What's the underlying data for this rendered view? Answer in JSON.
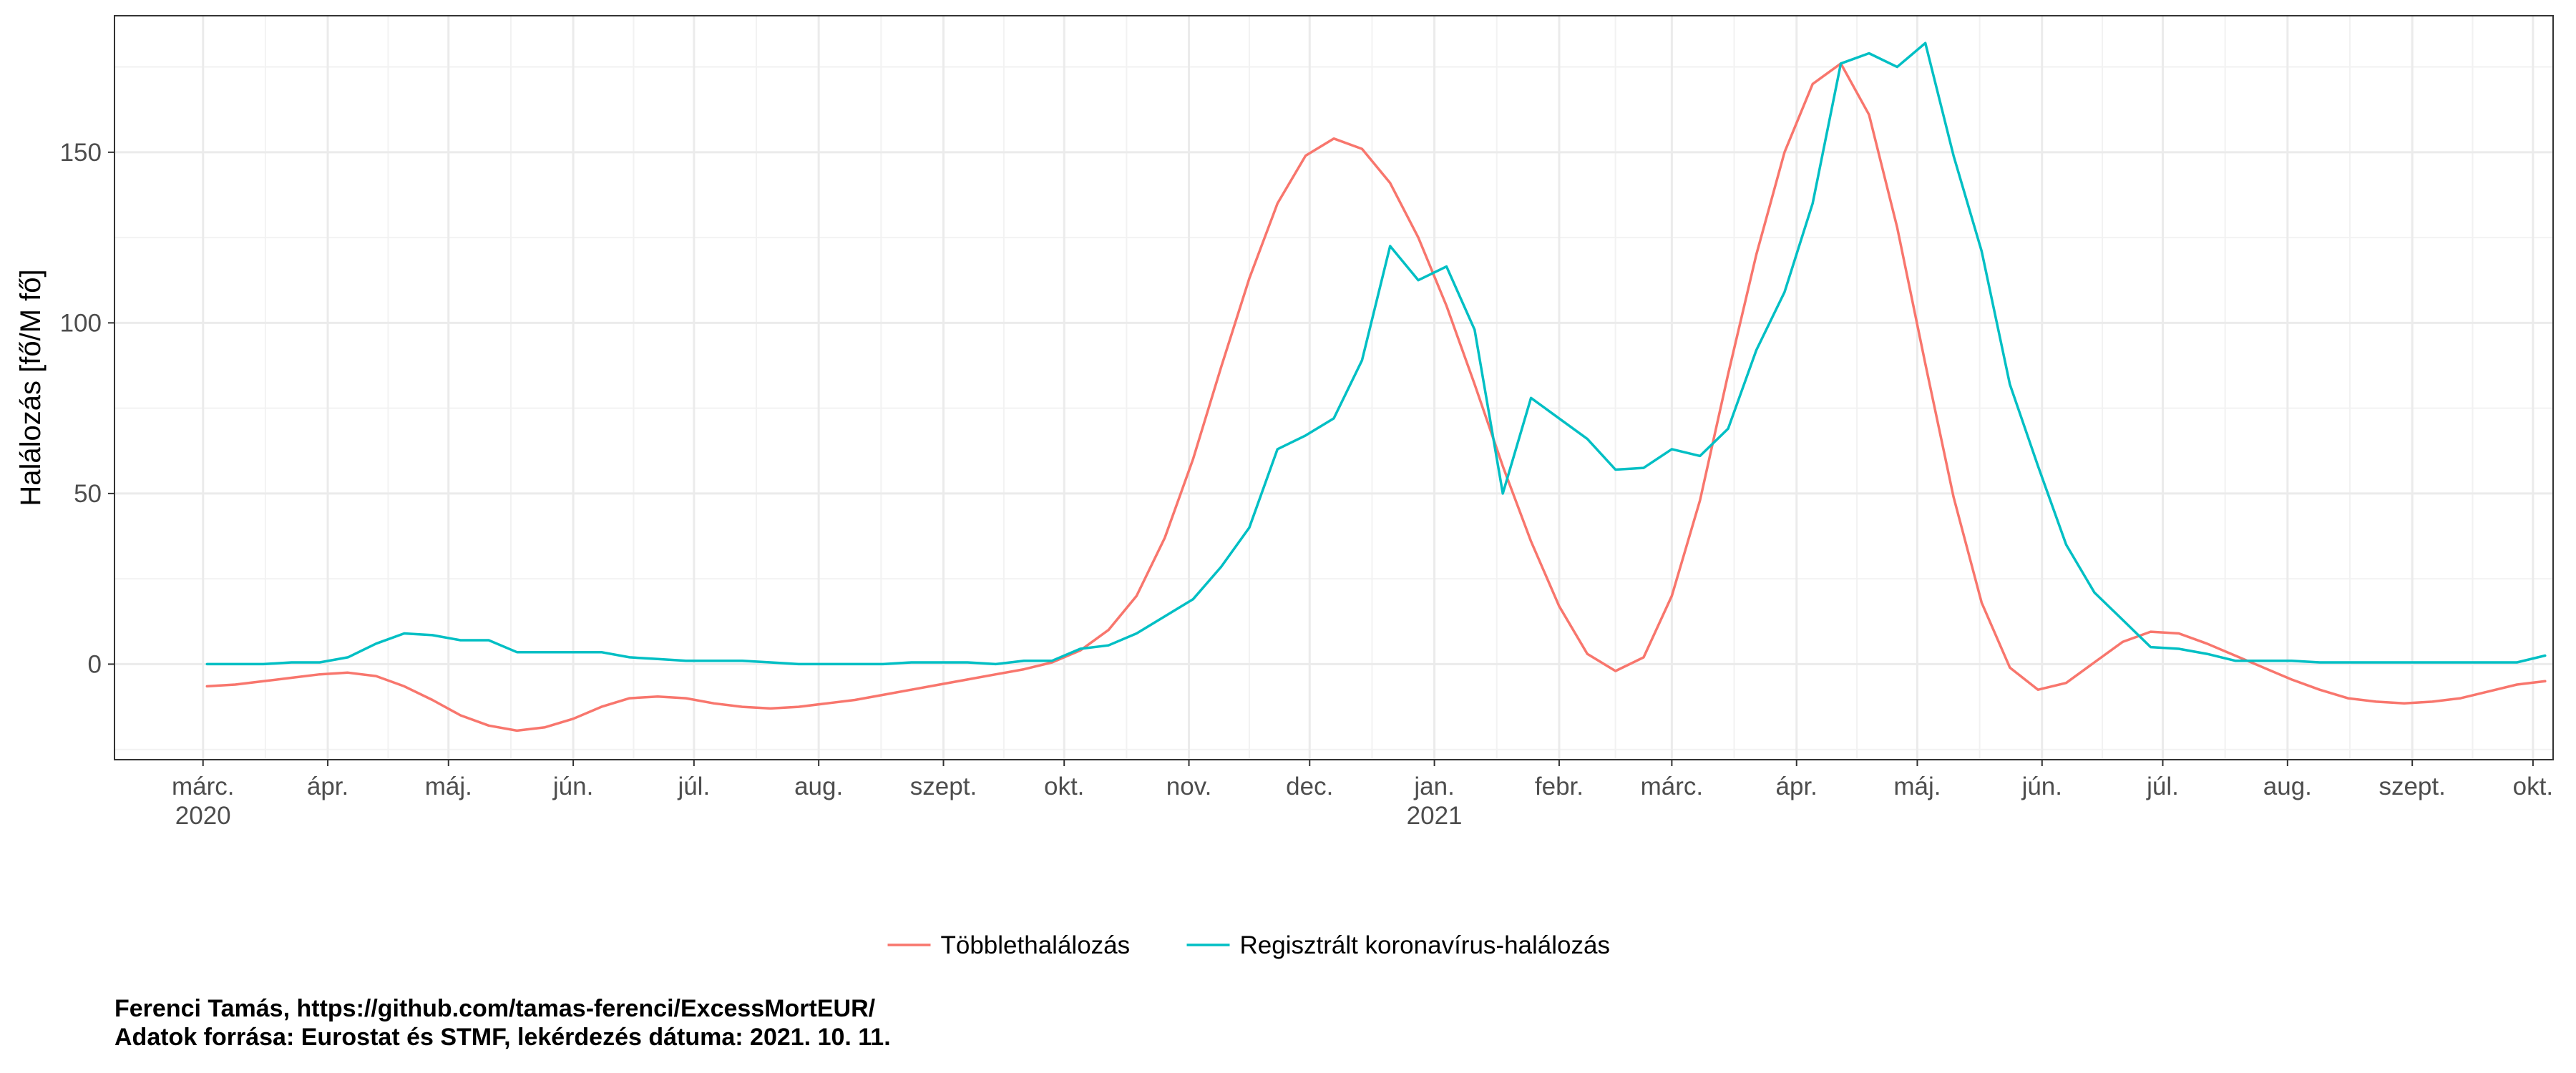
{
  "chart_data": {
    "type": "line",
    "ylabel": "Halálozás [fő/M fő]",
    "xlabel": "",
    "ylim": [
      -28,
      190
    ],
    "xlim": [
      "2020-02-08",
      "2021-10-06"
    ],
    "y_ticks": [
      0,
      50,
      100,
      150
    ],
    "x_ticks": [
      {
        "date": "2020-03-01",
        "label": "márc.",
        "year": "2020"
      },
      {
        "date": "2020-04-01",
        "label": "ápr."
      },
      {
        "date": "2020-05-01",
        "label": "máj."
      },
      {
        "date": "2020-06-01",
        "label": "jún."
      },
      {
        "date": "2020-07-01",
        "label": "júl."
      },
      {
        "date": "2020-08-01",
        "label": "aug."
      },
      {
        "date": "2020-09-01",
        "label": "szept."
      },
      {
        "date": "2020-10-01",
        "label": "okt."
      },
      {
        "date": "2020-11-01",
        "label": "nov."
      },
      {
        "date": "2020-12-01",
        "label": "dec."
      },
      {
        "date": "2021-01-01",
        "label": "jan.",
        "year": "2021"
      },
      {
        "date": "2021-02-01",
        "label": "febr."
      },
      {
        "date": "2021-03-01",
        "label": "márc."
      },
      {
        "date": "2021-04-01",
        "label": "ápr."
      },
      {
        "date": "2021-05-01",
        "label": "máj."
      },
      {
        "date": "2021-06-01",
        "label": "jún."
      },
      {
        "date": "2021-07-01",
        "label": "júl."
      },
      {
        "date": "2021-08-01",
        "label": "aug."
      },
      {
        "date": "2021-09-01",
        "label": "szept."
      },
      {
        "date": "2021-10-01",
        "label": "okt."
      }
    ],
    "grid": true,
    "legend_position": "bottom",
    "series": [
      {
        "name": "Többlethalálozás",
        "color": "#F8766D",
        "points": [
          [
            "2020-03-02",
            -6.5
          ],
          [
            "2020-03-09",
            -6
          ],
          [
            "2020-03-16",
            -5
          ],
          [
            "2020-03-23",
            -4
          ],
          [
            "2020-03-30",
            -3
          ],
          [
            "2020-04-06",
            -2.5
          ],
          [
            "2020-04-13",
            -3.5
          ],
          [
            "2020-04-20",
            -6.5
          ],
          [
            "2020-04-27",
            -10.5
          ],
          [
            "2020-05-04",
            -15
          ],
          [
            "2020-05-11",
            -18
          ],
          [
            "2020-05-18",
            -19.5
          ],
          [
            "2020-05-25",
            -18.5
          ],
          [
            "2020-06-01",
            -16
          ],
          [
            "2020-06-08",
            -12.5
          ],
          [
            "2020-06-15",
            -10
          ],
          [
            "2020-06-22",
            -9.5
          ],
          [
            "2020-06-29",
            -10
          ],
          [
            "2020-07-06",
            -11.5
          ],
          [
            "2020-07-13",
            -12.5
          ],
          [
            "2020-07-20",
            -13
          ],
          [
            "2020-07-27",
            -12.5
          ],
          [
            "2020-08-03",
            -11.5
          ],
          [
            "2020-08-10",
            -10.5
          ],
          [
            "2020-08-17",
            -9
          ],
          [
            "2020-08-24",
            -7.5
          ],
          [
            "2020-08-31",
            -6
          ],
          [
            "2020-09-07",
            -4.5
          ],
          [
            "2020-09-14",
            -3
          ],
          [
            "2020-09-21",
            -1.5
          ],
          [
            "2020-09-28",
            0.5
          ],
          [
            "2020-10-05",
            4
          ],
          [
            "2020-10-12",
            10
          ],
          [
            "2020-10-19",
            20
          ],
          [
            "2020-10-26",
            37
          ],
          [
            "2020-11-02",
            60
          ],
          [
            "2020-11-09",
            87
          ],
          [
            "2020-11-16",
            113
          ],
          [
            "2020-11-23",
            135
          ],
          [
            "2020-11-30",
            149
          ],
          [
            "2020-12-07",
            154
          ],
          [
            "2020-12-14",
            151
          ],
          [
            "2020-12-21",
            141
          ],
          [
            "2020-12-28",
            125
          ],
          [
            "2021-01-04",
            105
          ],
          [
            "2021-01-11",
            82
          ],
          [
            "2021-01-18",
            58
          ],
          [
            "2021-01-25",
            36
          ],
          [
            "2021-02-01",
            17
          ],
          [
            "2021-02-08",
            3
          ],
          [
            "2021-02-15",
            -2
          ],
          [
            "2021-02-22",
            2
          ],
          [
            "2021-03-01",
            20
          ],
          [
            "2021-03-08",
            48
          ],
          [
            "2021-03-15",
            85
          ],
          [
            "2021-03-22",
            120
          ],
          [
            "2021-03-29",
            150
          ],
          [
            "2021-04-05",
            170
          ],
          [
            "2021-04-12",
            176
          ],
          [
            "2021-04-19",
            161
          ],
          [
            "2021-04-26",
            128
          ],
          [
            "2021-05-03",
            88
          ],
          [
            "2021-05-10",
            49
          ],
          [
            "2021-05-17",
            18
          ],
          [
            "2021-05-24",
            -1
          ],
          [
            "2021-05-31",
            -7.5
          ],
          [
            "2021-06-07",
            -5.5
          ],
          [
            "2021-06-14",
            0.5
          ],
          [
            "2021-06-21",
            6.5
          ],
          [
            "2021-06-28",
            9.5
          ],
          [
            "2021-07-05",
            9
          ],
          [
            "2021-07-12",
            6
          ],
          [
            "2021-07-19",
            2.5
          ],
          [
            "2021-07-26",
            -1
          ],
          [
            "2021-08-02",
            -4.5
          ],
          [
            "2021-08-09",
            -7.5
          ],
          [
            "2021-08-16",
            -10
          ],
          [
            "2021-08-23",
            -11
          ],
          [
            "2021-08-30",
            -11.5
          ],
          [
            "2021-09-06",
            -11
          ],
          [
            "2021-09-13",
            -10
          ],
          [
            "2021-09-20",
            -8
          ],
          [
            "2021-09-27",
            -6
          ],
          [
            "2021-10-04",
            -5
          ]
        ]
      },
      {
        "name": "Regisztrált koronavírus-halálozás",
        "color": "#00BFC4",
        "points": [
          [
            "2020-03-02",
            0
          ],
          [
            "2020-03-09",
            0
          ],
          [
            "2020-03-16",
            0
          ],
          [
            "2020-03-23",
            0.5
          ],
          [
            "2020-03-30",
            0.5
          ],
          [
            "2020-04-06",
            2
          ],
          [
            "2020-04-13",
            6
          ],
          [
            "2020-04-20",
            9
          ],
          [
            "2020-04-27",
            8.5
          ],
          [
            "2020-05-04",
            7
          ],
          [
            "2020-05-11",
            7
          ],
          [
            "2020-05-18",
            3.5
          ],
          [
            "2020-05-25",
            3.5
          ],
          [
            "2020-06-01",
            3.5
          ],
          [
            "2020-06-08",
            3.5
          ],
          [
            "2020-06-15",
            2
          ],
          [
            "2020-06-22",
            1.5
          ],
          [
            "2020-06-29",
            1
          ],
          [
            "2020-07-06",
            1
          ],
          [
            "2020-07-13",
            1
          ],
          [
            "2020-07-20",
            0.5
          ],
          [
            "2020-07-27",
            0
          ],
          [
            "2020-08-03",
            0
          ],
          [
            "2020-08-10",
            0
          ],
          [
            "2020-08-17",
            0
          ],
          [
            "2020-08-24",
            0.5
          ],
          [
            "2020-08-31",
            0.5
          ],
          [
            "2020-09-07",
            0.5
          ],
          [
            "2020-09-14",
            0
          ],
          [
            "2020-09-21",
            1
          ],
          [
            "2020-09-28",
            1
          ],
          [
            "2020-10-05",
            4.5
          ],
          [
            "2020-10-12",
            5.5
          ],
          [
            "2020-10-19",
            9
          ],
          [
            "2020-10-26",
            14
          ],
          [
            "2020-11-02",
            19
          ],
          [
            "2020-11-09",
            28.5
          ],
          [
            "2020-11-16",
            40
          ],
          [
            "2020-11-23",
            63
          ],
          [
            "2020-11-30",
            67
          ],
          [
            "2020-12-07",
            72
          ],
          [
            "2020-12-14",
            89
          ],
          [
            "2020-12-21",
            122.5
          ],
          [
            "2020-12-28",
            112.5
          ],
          [
            "2021-01-04",
            116.5
          ],
          [
            "2021-01-11",
            98
          ],
          [
            "2021-01-18",
            50
          ],
          [
            "2021-01-25",
            78
          ],
          [
            "2021-02-01",
            72
          ],
          [
            "2021-02-08",
            66
          ],
          [
            "2021-02-15",
            57
          ],
          [
            "2021-02-22",
            57.5
          ],
          [
            "2021-03-01",
            63
          ],
          [
            "2021-03-08",
            61
          ],
          [
            "2021-03-15",
            69
          ],
          [
            "2021-03-22",
            92
          ],
          [
            "2021-03-29",
            109
          ],
          [
            "2021-04-05",
            135
          ],
          [
            "2021-04-12",
            176
          ],
          [
            "2021-04-19",
            179
          ],
          [
            "2021-04-26",
            175
          ],
          [
            "2021-05-03",
            182
          ],
          [
            "2021-05-10",
            149
          ],
          [
            "2021-05-17",
            121
          ],
          [
            "2021-05-24",
            82
          ],
          [
            "2021-05-31",
            58
          ],
          [
            "2021-06-07",
            35
          ],
          [
            "2021-06-14",
            21
          ],
          [
            "2021-06-21",
            13
          ],
          [
            "2021-06-28",
            5
          ],
          [
            "2021-07-05",
            4.5
          ],
          [
            "2021-07-12",
            3
          ],
          [
            "2021-07-19",
            1
          ],
          [
            "2021-07-26",
            1
          ],
          [
            "2021-08-02",
            1
          ],
          [
            "2021-08-09",
            0.5
          ],
          [
            "2021-08-16",
            0.5
          ],
          [
            "2021-08-23",
            0.5
          ],
          [
            "2021-08-30",
            0.5
          ],
          [
            "2021-09-06",
            0.5
          ],
          [
            "2021-09-13",
            0.5
          ],
          [
            "2021-09-20",
            0.5
          ],
          [
            "2021-09-27",
            0.5
          ],
          [
            "2021-10-04",
            2.5
          ]
        ]
      }
    ]
  },
  "caption": {
    "line1": "Ferenci Tamás, https://github.com/tamas-ferenci/ExcessMortEUR/",
    "line2": "Adatok forrása: Eurostat és STMF, lekérdezés dátuma: 2021. 10. 11."
  }
}
